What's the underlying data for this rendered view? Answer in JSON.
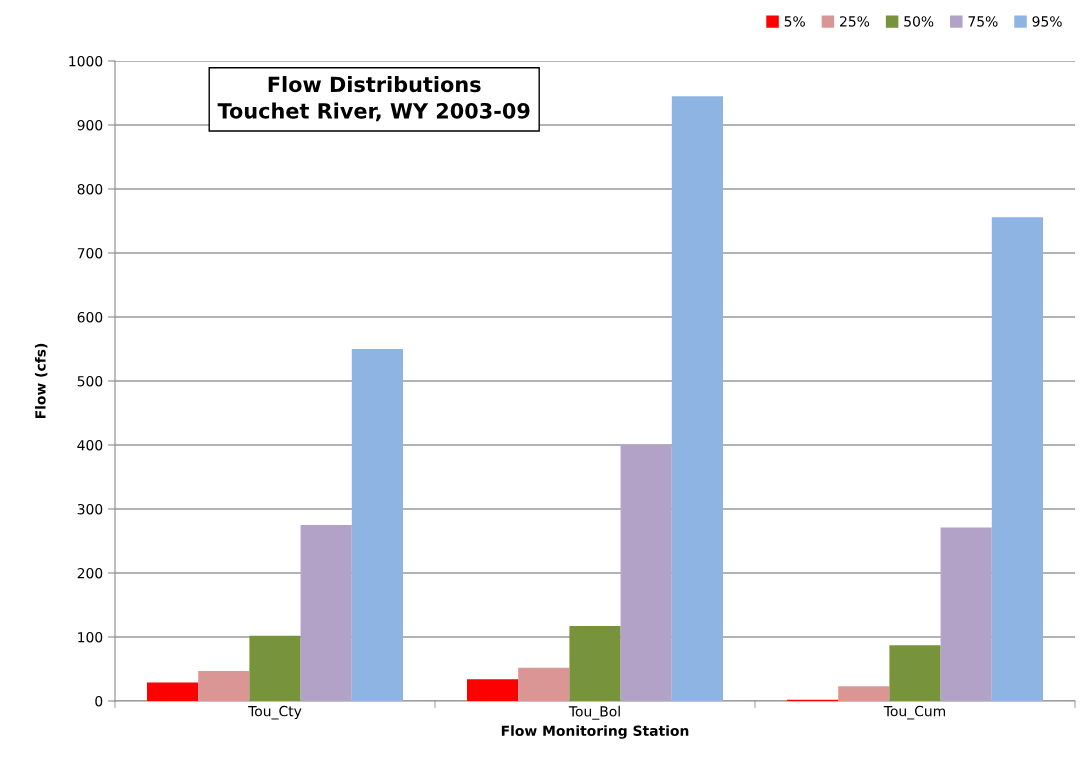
{
  "chart_data": {
    "type": "bar",
    "title": "Flow Distributions\nTouchet River, WY 2003-09",
    "xlabel": "Flow Monitoring Station",
    "ylabel": "Flow (cfs)",
    "categories": [
      "Tou_Cty",
      "Tou_Bol",
      "Tou_Cum"
    ],
    "series": [
      {
        "name": "5%",
        "color": "#ff0000",
        "values": [
          29,
          34,
          2
        ]
      },
      {
        "name": "25%",
        "color": "#d99694",
        "values": [
          47,
          52,
          23
        ]
      },
      {
        "name": "50%",
        "color": "#77933c",
        "values": [
          102,
          117,
          87
        ]
      },
      {
        "name": "75%",
        "color": "#b2a2c7",
        "values": [
          275,
          400,
          271
        ]
      },
      {
        "name": "95%",
        "color": "#8eb4e3",
        "values": [
          550,
          945,
          756
        ]
      }
    ],
    "ylim": [
      0,
      1000
    ],
    "yticks": [
      0,
      100,
      200,
      300,
      400,
      500,
      600,
      700,
      800,
      900,
      1000
    ],
    "grid": "y",
    "legend": "top right"
  }
}
